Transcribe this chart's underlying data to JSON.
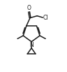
{
  "bg_color": "#ffffff",
  "line_color": "#1a1a1a",
  "lw": 1.1,
  "fig_w": 0.96,
  "fig_h": 1.03,
  "dpi": 100,
  "atoms": {
    "O_label": "O",
    "Cl_label": "Cl",
    "N_label": "N"
  },
  "font_size_atom": 5.5,
  "xlim": [
    0,
    10
  ],
  "ylim": [
    0,
    10.7
  ]
}
